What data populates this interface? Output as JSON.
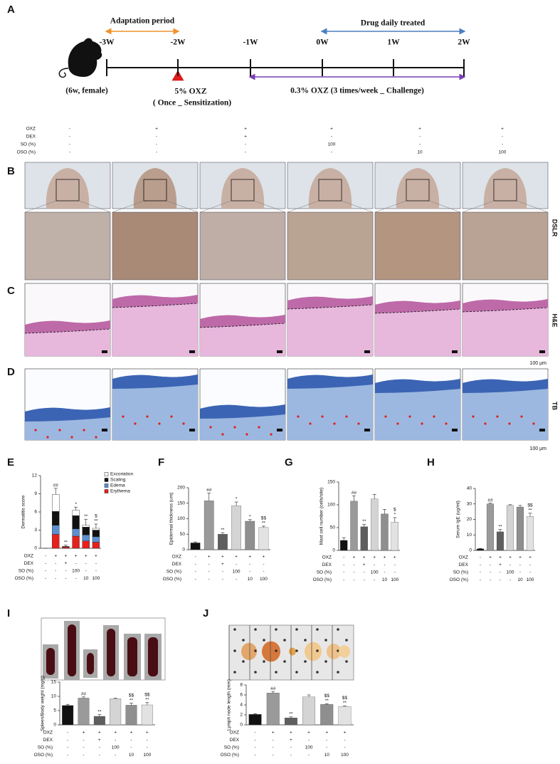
{
  "panel_a": {
    "label": "A",
    "adaptation": "Adaptation period",
    "drug": "Drug daily treated",
    "weeks": [
      "-3W",
      "-2W",
      "-1W",
      "0W",
      "1W",
      "2W"
    ],
    "mouse": "(6w, female)",
    "sensitization": [
      "5% OXZ",
      "( Once _ Sensitization)"
    ],
    "challenge": "0.3% OXZ (3 times/week _ Challenge)"
  },
  "treatment_table": {
    "rows": [
      {
        "label": "OXZ",
        "values": [
          "-",
          "+",
          "+",
          "+",
          "+",
          "+"
        ]
      },
      {
        "label": "DEX",
        "values": [
          "-",
          "-",
          "+",
          "-",
          "-",
          "-"
        ]
      },
      {
        "label": "SO (%)",
        "values": [
          "-",
          "-",
          "-",
          "100",
          "-",
          "-"
        ]
      },
      {
        "label": "OSO (%)",
        "values": [
          "-",
          "-",
          "-",
          "-",
          "10",
          "100"
        ]
      }
    ]
  },
  "panel_b": {
    "label": "B",
    "side_label": "DSLR"
  },
  "panel_c": {
    "label": "C",
    "side_label": "H&E",
    "scale_bar": "100 µm"
  },
  "panel_d": {
    "label": "D",
    "side_label": "TB",
    "scale_bar": "100 µm"
  },
  "chart_data": [
    {
      "type": "stacked_bar",
      "panel": "E",
      "ylabel": "Dermatitis score",
      "ylim": [
        0,
        12
      ],
      "yticks": [
        0,
        3,
        6,
        9,
        12
      ],
      "series": [
        {
          "name": "Excoriation",
          "color": "#ffffff",
          "values": [
            0,
            2.8,
            0,
            0.9,
            0.3,
            0.3
          ],
          "errors": [
            0,
            1.0,
            0.2,
            0.5,
            1.0,
            0.7
          ]
        },
        {
          "name": "Scaling",
          "color": "#111111",
          "values": [
            0,
            2.3,
            0.1,
            2.2,
            1.3,
            1.1
          ]
        },
        {
          "name": "Edema",
          "color": "#5b8fd0",
          "values": [
            0,
            1.5,
            0,
            1.2,
            1.0,
            0.9
          ]
        },
        {
          "name": "Erythema",
          "color": "#e8201c",
          "values": [
            0,
            2.3,
            0.2,
            2.0,
            1.2,
            1.0
          ]
        }
      ],
      "significance": [
        [],
        [
          "##"
        ],
        [
          "**"
        ],
        [
          "*"
        ],
        [
          "**"
        ],
        [
          "$",
          "**"
        ]
      ],
      "conditions": {
        "rows": [
          {
            "label": "OXZ",
            "values": [
              "-",
              "+",
              "+",
              "+",
              "+",
              "+"
            ]
          },
          {
            "label": "DEX",
            "values": [
              "-",
              "-",
              "+",
              "-",
              "-",
              "-"
            ]
          },
          {
            "label": "SO (%)",
            "values": [
              "-",
              "-",
              "-",
              "100",
              "-",
              "-"
            ]
          },
          {
            "label": "OSO (%)",
            "values": [
              "-",
              "-",
              "-",
              "-",
              "10",
              "100"
            ]
          }
        ]
      }
    },
    {
      "type": "bar",
      "panel": "F",
      "ylabel": "Epidermal thickness (um)",
      "ylim": [
        0,
        200
      ],
      "yticks": [
        0,
        50,
        100,
        150,
        200
      ],
      "values": [
        22,
        158,
        50,
        142,
        92,
        72
      ],
      "errors": [
        3,
        25,
        5,
        12,
        5,
        4
      ],
      "colors": [
        "#111111",
        "#9a9a9a",
        "#5e5e5e",
        "#d4d4d4",
        "#8f8f8f",
        "#e2e2e2"
      ],
      "significance": [
        [],
        [
          "##"
        ],
        [
          "**"
        ],
        [
          "*"
        ],
        [
          "*"
        ],
        [
          "$$",
          "**"
        ]
      ],
      "conditions": {
        "rows": [
          {
            "label": "OXZ",
            "values": [
              "-",
              "+",
              "+",
              "+",
              "+",
              "+"
            ]
          },
          {
            "label": "DEX",
            "values": [
              "-",
              "-",
              "+",
              "-",
              "-",
              "-"
            ]
          },
          {
            "label": "SO (%)",
            "values": [
              "-",
              "-",
              "-",
              "100",
              "-",
              "-"
            ]
          },
          {
            "label": "OSO (%)",
            "values": [
              "-",
              "-",
              "-",
              "-",
              "10",
              "100"
            ]
          }
        ]
      }
    },
    {
      "type": "bar",
      "panel": "G",
      "ylabel": "Mast cell number (cells/site)",
      "ylim": [
        0,
        150
      ],
      "yticks": [
        0,
        50,
        100,
        150
      ],
      "values": [
        22,
        108,
        52,
        113,
        80,
        62
      ],
      "errors": [
        6,
        12,
        5,
        10,
        10,
        10
      ],
      "colors": [
        "#111111",
        "#9a9a9a",
        "#5e5e5e",
        "#d4d4d4",
        "#8f8f8f",
        "#e2e2e2"
      ],
      "significance": [
        [],
        [
          "##"
        ],
        [
          "**"
        ],
        [],
        [],
        [
          "$",
          "*"
        ]
      ],
      "conditions": {
        "rows": [
          {
            "label": "OXZ",
            "values": [
              "-",
              "+",
              "+",
              "+",
              "+",
              "+"
            ]
          },
          {
            "label": "DEX",
            "values": [
              "-",
              "-",
              "+",
              "-",
              "-",
              "-"
            ]
          },
          {
            "label": "SO (%)",
            "values": [
              "-",
              "-",
              "-",
              "100",
              "-",
              "-"
            ]
          },
          {
            "label": "OSO (%)",
            "values": [
              "-",
              "-",
              "-",
              "-",
              "10",
              "100"
            ]
          }
        ]
      }
    },
    {
      "type": "bar",
      "panel": "H",
      "ylabel": "Serum IgE (ug/ml)",
      "ylim": [
        0,
        40
      ],
      "yticks": [
        0,
        10,
        20,
        30,
        40
      ],
      "values": [
        1,
        30,
        12,
        29,
        28,
        22
      ],
      "errors": [
        0.3,
        0.5,
        1.5,
        0.5,
        1,
        2
      ],
      "colors": [
        "#111111",
        "#9a9a9a",
        "#5e5e5e",
        "#d4d4d4",
        "#8f8f8f",
        "#e2e2e2"
      ],
      "significance": [
        [],
        [
          "##"
        ],
        [
          "**"
        ],
        [],
        [],
        [
          "$$",
          "**"
        ]
      ],
      "conditions": {
        "rows": [
          {
            "label": "OXZ",
            "values": [
              "-",
              "+",
              "+",
              "+",
              "+",
              "+"
            ]
          },
          {
            "label": "DEX",
            "values": [
              "-",
              "-",
              "+",
              "-",
              "-",
              "-"
            ]
          },
          {
            "label": "SO (%)",
            "values": [
              "-",
              "-",
              "-",
              "100",
              "-",
              "-"
            ]
          },
          {
            "label": "OSO (%)",
            "values": [
              "-",
              "-",
              "-",
              "-",
              "10",
              "100"
            ]
          }
        ]
      }
    },
    {
      "type": "bar",
      "panel": "I",
      "ylabel": "Spleen/Body weight (mg/g)",
      "ylim": [
        0,
        15
      ],
      "yticks": [
        0,
        5,
        10,
        15
      ],
      "values": [
        6.8,
        9.4,
        3.0,
        9.2,
        6.9,
        7.0
      ],
      "errors": [
        0.4,
        0.4,
        0.6,
        0.2,
        0.7,
        0.8
      ],
      "colors": [
        "#111111",
        "#9a9a9a",
        "#5e5e5e",
        "#d4d4d4",
        "#8f8f8f",
        "#e2e2e2"
      ],
      "significance": [
        [],
        [
          "##"
        ],
        [
          "**"
        ],
        [],
        [
          "$$",
          "**"
        ],
        [
          "$$",
          "**"
        ]
      ],
      "conditions": {
        "rows": [
          {
            "label": "OXZ",
            "values": [
              "-",
              "+",
              "+",
              "+",
              "+",
              "+"
            ]
          },
          {
            "label": "DEX",
            "values": [
              "-",
              "-",
              "+",
              "-",
              "-",
              "-"
            ]
          },
          {
            "label": "SO (%)",
            "values": [
              "-",
              "-",
              "-",
              "100",
              "-",
              "-"
            ]
          },
          {
            "label": "OSO (%)",
            "values": [
              "-",
              "-",
              "-",
              "-",
              "10",
              "100"
            ]
          }
        ]
      }
    },
    {
      "type": "bar",
      "panel": "J",
      "ylabel": "Lymph node length (mm)",
      "ylim": [
        0,
        8
      ],
      "yticks": [
        0,
        2,
        4,
        6,
        8
      ],
      "values": [
        2.1,
        6.4,
        1.4,
        5.6,
        4.1,
        3.7
      ],
      "errors": [
        0.15,
        0.3,
        0.2,
        0.4,
        0.15,
        0.1
      ],
      "colors": [
        "#111111",
        "#9a9a9a",
        "#5e5e5e",
        "#d4d4d4",
        "#8f8f8f",
        "#e2e2e2"
      ],
      "significance": [
        [],
        [
          "##"
        ],
        [
          "**"
        ],
        [],
        [
          "$$",
          "**"
        ],
        [
          "$$",
          "**"
        ]
      ],
      "conditions": {
        "rows": [
          {
            "label": "OXZ",
            "values": [
              "-",
              "+",
              "+",
              "+",
              "+",
              "+"
            ]
          },
          {
            "label": "DEX",
            "values": [
              "-",
              "-",
              "+",
              "-",
              "-",
              "-"
            ]
          },
          {
            "label": "SO (%)",
            "values": [
              "-",
              "-",
              "-",
              "100",
              "-",
              "-"
            ]
          },
          {
            "label": "OSO (%)",
            "values": [
              "-",
              "-",
              "-",
              "-",
              "10",
              "100"
            ]
          }
        ]
      }
    }
  ]
}
